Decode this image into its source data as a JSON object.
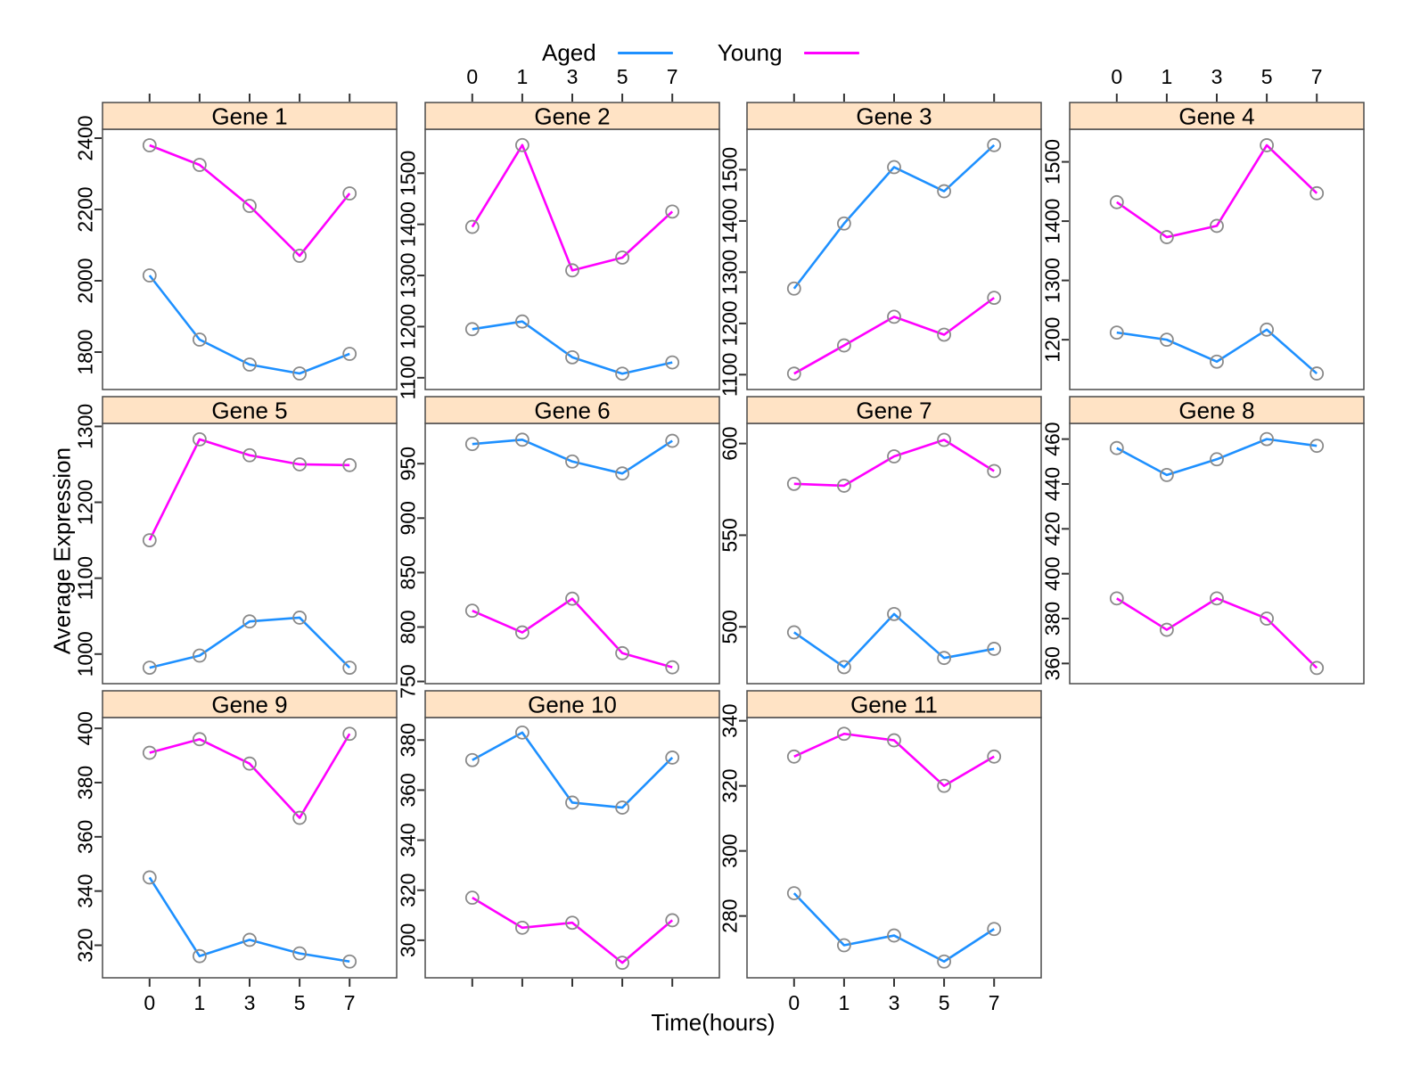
{
  "figure": {
    "kind": "trellis-line-chart"
  },
  "legend": {
    "aged_label": "Aged",
    "young_label": "Young"
  },
  "chart_data": {
    "type": "line",
    "title": "",
    "xlabel": "Time(hours)",
    "ylabel": "Average Expression",
    "x_categories": [
      "0",
      "1",
      "3",
      "5",
      "7"
    ],
    "series_names": [
      "Aged",
      "Young"
    ],
    "colors": {
      "Aged": "#1E90FF",
      "Young": "#FF00FF",
      "marker": "#8A8A8A",
      "strip_bg": "#FFE3C5",
      "border": "#4A4A4A",
      "tick": "#333333"
    },
    "layout": {
      "rows": 3,
      "cols": 4,
      "grid": "equally spaced categorical x axis",
      "legend_position": "top-center",
      "top_x_label_cols": [
        2,
        4
      ],
      "bottom_x_label_panels": [
        "Gene 9",
        "Gene 11"
      ],
      "bottom_ticks_only_panels": [
        "Gene 10"
      ]
    },
    "panels": [
      {
        "title": "Gene 1",
        "ylim": [
          1695,
          2425
        ],
        "yticks": [
          1800,
          2000,
          2200,
          2400
        ],
        "series": [
          {
            "name": "Aged",
            "values": [
              2015,
              1835,
              1765,
              1740,
              1795
            ]
          },
          {
            "name": "Young",
            "values": [
              2380,
              2325,
              2210,
              2070,
              2245
            ]
          }
        ]
      },
      {
        "title": "Gene 2",
        "ylim": [
          1077,
          1586
        ],
        "yticks": [
          1100,
          1200,
          1300,
          1400,
          1500
        ],
        "series": [
          {
            "name": "Aged",
            "values": [
              1195,
              1210,
              1140,
              1108,
              1130
            ]
          },
          {
            "name": "Young",
            "values": [
              1395,
              1555,
              1310,
              1335,
              1425
            ]
          }
        ]
      },
      {
        "title": "Gene 3",
        "ylim": [
          1071,
          1579
        ],
        "yticks": [
          1100,
          1200,
          1300,
          1400,
          1500
        ],
        "series": [
          {
            "name": "Aged",
            "values": [
              1268,
              1395,
              1505,
              1458,
              1548
            ]
          },
          {
            "name": "Young",
            "values": [
              1102,
              1157,
              1213,
              1178,
              1250
            ]
          }
        ]
      },
      {
        "title": "Gene 4",
        "ylim": [
          1116,
          1555
        ],
        "yticks": [
          1200,
          1300,
          1400,
          1500
        ],
        "series": [
          {
            "name": "Aged",
            "values": [
              1212,
              1200,
              1163,
              1217,
              1143
            ]
          },
          {
            "name": "Young",
            "values": [
              1432,
              1373,
              1392,
              1528,
              1447
            ]
          }
        ]
      },
      {
        "title": "Gene 5",
        "ylim": [
          961,
          1304
        ],
        "yticks": [
          1000,
          1100,
          1200,
          1300
        ],
        "series": [
          {
            "name": "Aged",
            "values": [
              982,
              998,
              1043,
              1048,
              982
            ]
          },
          {
            "name": "Young",
            "values": [
              1150,
              1283,
              1262,
              1250,
              1249
            ]
          }
        ]
      },
      {
        "title": "Gene 6",
        "ylim": [
          748,
          987
        ],
        "yticks": [
          750,
          800,
          850,
          900,
          950
        ],
        "series": [
          {
            "name": "Aged",
            "values": [
              968,
              972,
              952,
              941,
              971
            ]
          },
          {
            "name": "Young",
            "values": [
              815,
              795,
              826,
              776,
              763
            ]
          }
        ]
      },
      {
        "title": "Gene 7",
        "ylim": [
          469,
          611
        ],
        "yticks": [
          500,
          550,
          600
        ],
        "series": [
          {
            "name": "Aged",
            "values": [
              497,
              478,
              507,
              483,
              488
            ]
          },
          {
            "name": "Young",
            "values": [
              578,
              577,
              593,
              602,
              585
            ]
          }
        ]
      },
      {
        "title": "Gene 8",
        "ylim": [
          351,
          467
        ],
        "yticks": [
          360,
          380,
          400,
          420,
          440,
          460
        ],
        "series": [
          {
            "name": "Aged",
            "values": [
              456,
              444,
              451,
              460,
              457
            ]
          },
          {
            "name": "Young",
            "values": [
              389,
              375,
              389,
              380,
              358
            ]
          }
        ]
      },
      {
        "title": "Gene 9",
        "ylim": [
          308,
          404
        ],
        "yticks": [
          320,
          340,
          360,
          380,
          400
        ],
        "series": [
          {
            "name": "Aged",
            "values": [
              345,
              316,
              322,
              317,
              314
            ]
          },
          {
            "name": "Young",
            "values": [
              391,
              396,
              387,
              367,
              398
            ]
          }
        ]
      },
      {
        "title": "Gene 10",
        "ylim": [
          285,
          389
        ],
        "yticks": [
          300,
          320,
          340,
          360,
          380
        ],
        "series": [
          {
            "name": "Aged",
            "values": [
              372,
              383,
              355,
              353,
              373
            ]
          },
          {
            "name": "Young",
            "values": [
              317,
              305,
              307,
              291,
              308
            ]
          }
        ]
      },
      {
        "title": "Gene 11",
        "ylim": [
          261,
          341
        ],
        "yticks": [
          280,
          300,
          320,
          340
        ],
        "series": [
          {
            "name": "Aged",
            "values": [
              287,
              271,
              274,
              266,
              276
            ]
          },
          {
            "name": "Young",
            "values": [
              329,
              336,
              334,
              320,
              329
            ]
          }
        ]
      }
    ]
  }
}
